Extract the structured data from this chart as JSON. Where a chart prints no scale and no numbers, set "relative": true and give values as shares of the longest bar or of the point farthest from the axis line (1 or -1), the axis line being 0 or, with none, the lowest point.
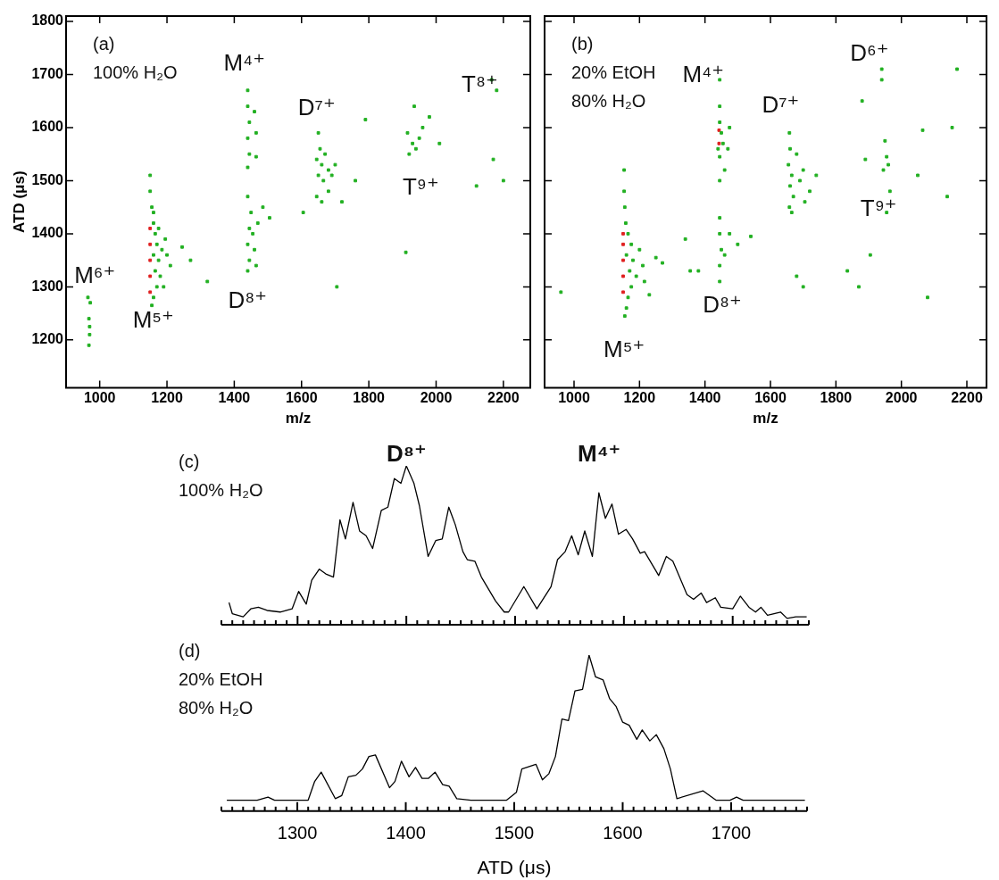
{
  "chart_data": [
    {
      "type": "scatter",
      "xlabel": "m/z",
      "ylabel": "ATD (μs)",
      "xlim": [
        900,
        2280
      ],
      "xticks": [
        1000,
        1200,
        1400,
        1600,
        1800,
        2000,
        2200
      ],
      "ylim": [
        1110,
        1810
      ],
      "yticks": [
        1200,
        1300,
        1400,
        1500,
        1600,
        1700,
        1800
      ],
      "marker": "square",
      "annotations": [
        "(a)",
        "100% H₂O",
        "M⁶⁺",
        "M⁵⁺",
        "M⁴⁺",
        "D⁸⁺",
        "D⁷⁺",
        "T⁹⁺",
        "T⁸⁺"
      ],
      "series": [
        {
          "color": "#22b022",
          "x": [
            968,
            970,
            968,
            972,
            965,
            970,
            1150,
            1150,
            1155,
            1160,
            1165,
            1170,
            1160,
            1175,
            1165,
            1180,
            1170,
            1160,
            1155,
            1185,
            1195,
            1200,
            1210,
            1190,
            1245,
            1270,
            1320,
            1175,
            1160,
            1440,
            1440,
            1445,
            1440,
            1445,
            1440,
            1460,
            1465,
            1465,
            1440,
            1450,
            1445,
            1455,
            1440,
            1460,
            1445,
            1440,
            1470,
            1485,
            1505,
            1465,
            1650,
            1655,
            1645,
            1660,
            1670,
            1680,
            1650,
            1665,
            1690,
            1700,
            1645,
            1660,
            1680,
            1720,
            1760,
            1790,
            1705,
            1605,
            1915,
            1930,
            1940,
            1950,
            1960,
            1980,
            1935,
            1920,
            2010,
            1910,
            2165,
            2180,
            2120,
            2200,
            2170
          ],
          "values": [
            1190,
            1210,
            1240,
            1270,
            1280,
            1225,
            1510,
            1480,
            1450,
            1420,
            1400,
            1380,
            1360,
            1350,
            1330,
            1320,
            1300,
            1280,
            1265,
            1370,
            1390,
            1360,
            1340,
            1300,
            1375,
            1350,
            1310,
            1410,
            1440,
            1670,
            1640,
            1610,
            1580,
            1550,
            1525,
            1630,
            1590,
            1545,
            1470,
            1440,
            1410,
            1400,
            1380,
            1370,
            1350,
            1330,
            1420,
            1450,
            1430,
            1340,
            1590,
            1560,
            1540,
            1530,
            1550,
            1520,
            1510,
            1500,
            1510,
            1530,
            1470,
            1460,
            1480,
            1460,
            1500,
            1615,
            1300,
            1440,
            1590,
            1570,
            1560,
            1580,
            1600,
            1620,
            1640,
            1550,
            1570,
            1365,
            1690,
            1670,
            1490,
            1500,
            1540
          ]
        },
        {
          "color": "#e02020",
          "x": [
            1150,
            1150,
            1150,
            1150,
            1150
          ],
          "values": [
            1290,
            1320,
            1350,
            1380,
            1410
          ]
        }
      ]
    },
    {
      "type": "scatter",
      "xlabel": "m/z",
      "xlim": [
        910,
        2260
      ],
      "xticks": [
        1000,
        1200,
        1400,
        1600,
        1800,
        2000,
        2200
      ],
      "ylim": [
        1110,
        1810
      ],
      "yticks": [
        1200,
        1300,
        1400,
        1500,
        1600,
        1700,
        1800
      ],
      "marker": "square",
      "tick_labels": "x",
      "annotations": [
        "(b)",
        "20% EtOH",
        "80% H₂O",
        "M⁴⁺",
        "M⁵⁺",
        "D⁸⁺",
        "D⁷⁺",
        "D⁶⁺",
        "T⁹⁺"
      ],
      "series": [
        {
          "color": "#22b022",
          "x": [
            1153,
            1153,
            1155,
            1158,
            1165,
            1175,
            1160,
            1180,
            1170,
            1190,
            1175,
            1165,
            1160,
            1155,
            1200,
            1210,
            1215,
            1230,
            1250,
            1270,
            1355,
            1340,
            1445,
            1445,
            1450,
            1455,
            1445,
            1460,
            1445,
            1470,
            1475,
            1440,
            1445,
            1445,
            1445,
            1450,
            1445,
            1445,
            1460,
            1475,
            1500,
            1540,
            1380,
            1658,
            1660,
            1655,
            1665,
            1660,
            1670,
            1658,
            1665,
            1690,
            1700,
            1705,
            1720,
            1740,
            1680,
            1700,
            1680,
            1940,
            1940,
            1950,
            1955,
            1945,
            1960,
            1965,
            1955,
            1890,
            2050,
            2140,
            2170,
            2155,
            2065,
            1880,
            1905,
            1835,
            1870,
            2080,
            960
          ],
          "values": [
            1520,
            1480,
            1450,
            1420,
            1400,
            1380,
            1360,
            1350,
            1330,
            1320,
            1300,
            1280,
            1260,
            1245,
            1370,
            1340,
            1310,
            1285,
            1355,
            1345,
            1330,
            1390,
            1640,
            1610,
            1590,
            1570,
            1545,
            1520,
            1500,
            1560,
            1600,
            1560,
            1690,
            1430,
            1400,
            1370,
            1340,
            1310,
            1360,
            1400,
            1380,
            1395,
            1330,
            1590,
            1560,
            1530,
            1510,
            1490,
            1470,
            1450,
            1440,
            1500,
            1520,
            1460,
            1480,
            1510,
            1550,
            1300,
            1320,
            1710,
            1690,
            1575,
            1545,
            1520,
            1530,
            1480,
            1440,
            1540,
            1510,
            1470,
            1710,
            1600,
            1595,
            1650,
            1360,
            1330,
            1300,
            1280,
            1290
          ]
        },
        {
          "color": "#e02020",
          "x": [
            1150,
            1150,
            1150,
            1150,
            1150,
            1443,
            1443
          ],
          "values": [
            1290,
            1320,
            1350,
            1380,
            1400,
            1570,
            1595
          ]
        }
      ]
    },
    {
      "type": "line",
      "relative": true,
      "tick_labels": false,
      "xlim": [
        1230,
        1770
      ],
      "marker": "none",
      "line_style": "solid",
      "xticks": [
        {
          "value": 1230,
          "label": null
        },
        {
          "value": 1240,
          "label": null
        },
        {
          "value": 1250,
          "label": null
        },
        {
          "value": 1260,
          "label": null
        },
        {
          "value": 1270,
          "label": null
        },
        {
          "value": 1280,
          "label": null
        },
        {
          "value": 1290,
          "label": null
        },
        1300,
        {
          "value": 1310,
          "label": null
        },
        {
          "value": 1320,
          "label": null
        },
        {
          "value": 1330,
          "label": null
        },
        {
          "value": 1340,
          "label": null
        },
        {
          "value": 1350,
          "label": null
        },
        {
          "value": 1360,
          "label": null
        },
        {
          "value": 1370,
          "label": null
        },
        {
          "value": 1380,
          "label": null
        },
        {
          "value": 1390,
          "label": null
        },
        1400,
        {
          "value": 1410,
          "label": null
        },
        {
          "value": 1420,
          "label": null
        },
        {
          "value": 1430,
          "label": null
        },
        {
          "value": 1440,
          "label": null
        },
        {
          "value": 1450,
          "label": null
        },
        {
          "value": 1460,
          "label": null
        },
        {
          "value": 1470,
          "label": null
        },
        {
          "value": 1480,
          "label": null
        },
        {
          "value": 1490,
          "label": null
        },
        1500,
        {
          "value": 1510,
          "label": null
        },
        {
          "value": 1520,
          "label": null
        },
        {
          "value": 1530,
          "label": null
        },
        {
          "value": 1540,
          "label": null
        },
        {
          "value": 1550,
          "label": null
        },
        {
          "value": 1560,
          "label": null
        },
        {
          "value": 1570,
          "label": null
        },
        {
          "value": 1580,
          "label": null
        },
        {
          "value": 1590,
          "label": null
        },
        1600,
        {
          "value": 1610,
          "label": null
        },
        {
          "value": 1620,
          "label": null
        },
        {
          "value": 1630,
          "label": null
        },
        {
          "value": 1640,
          "label": null
        },
        {
          "value": 1650,
          "label": null
        },
        {
          "value": 1660,
          "label": null
        },
        {
          "value": 1670,
          "label": null
        },
        {
          "value": 1680,
          "label": null
        },
        {
          "value": 1690,
          "label": null
        },
        1700,
        {
          "value": 1710,
          "label": null
        },
        {
          "value": 1720,
          "label": null
        },
        {
          "value": 1730,
          "label": null
        },
        {
          "value": 1740,
          "label": null
        },
        {
          "value": 1750,
          "label": null
        },
        {
          "value": 1760,
          "label": null
        },
        {
          "value": 1770,
          "label": null
        }
      ],
      "annotations": [
        "(c)",
        "100% H₂O",
        "D⁸⁺",
        "M⁴⁺"
      ],
      "series": [
        {
          "color": "#000000",
          "x": [
            1237,
            1240,
            1250,
            1257,
            1264,
            1272,
            1284,
            1295,
            1301,
            1308,
            1313,
            1320,
            1326,
            1333,
            1339,
            1344,
            1351,
            1357,
            1363,
            1369,
            1377,
            1383,
            1389,
            1395,
            1400,
            1407,
            1412,
            1420,
            1427,
            1433,
            1439,
            1445,
            1452,
            1456,
            1463,
            1469,
            1482,
            1490,
            1494,
            1508,
            1520,
            1533,
            1539,
            1546,
            1552,
            1558,
            1564,
            1571,
            1577,
            1583,
            1589,
            1595,
            1602,
            1608,
            1615,
            1619,
            1632,
            1639,
            1645,
            1658,
            1664,
            1671,
            1676,
            1684,
            1689,
            1700,
            1707,
            1715,
            1721,
            1726,
            1732,
            1744,
            1750,
            1758,
            1768
          ],
          "values": [
            0.14,
            0.07,
            0.05,
            0.1,
            0.11,
            0.09,
            0.08,
            0.1,
            0.21,
            0.13,
            0.28,
            0.35,
            0.32,
            0.3,
            0.66,
            0.54,
            0.77,
            0.59,
            0.56,
            0.48,
            0.72,
            0.74,
            0.92,
            0.89,
            1,
            0.89,
            0.75,
            0.43,
            0.53,
            0.54,
            0.74,
            0.63,
            0.46,
            0.41,
            0.4,
            0.3,
            0.15,
            0.08,
            0.08,
            0.24,
            0.1,
            0.24,
            0.41,
            0.46,
            0.56,
            0.44,
            0.59,
            0.43,
            0.83,
            0.67,
            0.76,
            0.57,
            0.6,
            0.54,
            0.45,
            0.46,
            0.31,
            0.43,
            0.4,
            0.19,
            0.16,
            0.2,
            0.14,
            0.17,
            0.11,
            0.1,
            0.18,
            0.11,
            0.08,
            0.11,
            0.06,
            0.08,
            0.04,
            0.05,
            0.05
          ]
        }
      ]
    },
    {
      "type": "line",
      "relative": true,
      "tick_labels": "x",
      "xlabel": "ATD (μs)",
      "xlim": [
        1230,
        1770
      ],
      "marker": "none",
      "line_style": "solid",
      "xticks": [
        {
          "value": 1230,
          "label": null
        },
        {
          "value": 1240,
          "label": null
        },
        {
          "value": 1250,
          "label": null
        },
        {
          "value": 1260,
          "label": null
        },
        {
          "value": 1270,
          "label": null
        },
        {
          "value": 1280,
          "label": null
        },
        {
          "value": 1290,
          "label": null
        },
        1300,
        {
          "value": 1310,
          "label": null
        },
        {
          "value": 1320,
          "label": null
        },
        {
          "value": 1330,
          "label": null
        },
        {
          "value": 1340,
          "label": null
        },
        {
          "value": 1350,
          "label": null
        },
        {
          "value": 1360,
          "label": null
        },
        {
          "value": 1370,
          "label": null
        },
        {
          "value": 1380,
          "label": null
        },
        {
          "value": 1390,
          "label": null
        },
        1400,
        {
          "value": 1410,
          "label": null
        },
        {
          "value": 1420,
          "label": null
        },
        {
          "value": 1430,
          "label": null
        },
        {
          "value": 1440,
          "label": null
        },
        {
          "value": 1450,
          "label": null
        },
        {
          "value": 1460,
          "label": null
        },
        {
          "value": 1470,
          "label": null
        },
        {
          "value": 1480,
          "label": null
        },
        {
          "value": 1490,
          "label": null
        },
        1500,
        {
          "value": 1510,
          "label": null
        },
        {
          "value": 1520,
          "label": null
        },
        {
          "value": 1530,
          "label": null
        },
        {
          "value": 1540,
          "label": null
        },
        {
          "value": 1550,
          "label": null
        },
        {
          "value": 1560,
          "label": null
        },
        {
          "value": 1570,
          "label": null
        },
        {
          "value": 1580,
          "label": null
        },
        {
          "value": 1590,
          "label": null
        },
        1600,
        {
          "value": 1610,
          "label": null
        },
        {
          "value": 1620,
          "label": null
        },
        {
          "value": 1630,
          "label": null
        },
        {
          "value": 1640,
          "label": null
        },
        {
          "value": 1650,
          "label": null
        },
        {
          "value": 1660,
          "label": null
        },
        {
          "value": 1670,
          "label": null
        },
        {
          "value": 1680,
          "label": null
        },
        {
          "value": 1690,
          "label": null
        },
        1700,
        {
          "value": 1710,
          "label": null
        },
        {
          "value": 1720,
          "label": null
        },
        {
          "value": 1730,
          "label": null
        },
        {
          "value": 1740,
          "label": null
        },
        {
          "value": 1750,
          "label": null
        },
        {
          "value": 1760,
          "label": null
        },
        {
          "value": 1770,
          "label": null
        }
      ],
      "annotations": [
        "(d)",
        "20% EtOH",
        "80% H₂O"
      ],
      "series": [
        {
          "color": "#000000",
          "x": [
            1235,
            1263,
            1273,
            1279,
            1286,
            1310,
            1316,
            1322,
            1335,
            1341,
            1347,
            1354,
            1360,
            1366,
            1372,
            1385,
            1390,
            1396,
            1403,
            1409,
            1415,
            1421,
            1427,
            1434,
            1440,
            1447,
            1460,
            1493,
            1502,
            1507,
            1520,
            1526,
            1532,
            1538,
            1544,
            1550,
            1556,
            1563,
            1569,
            1575,
            1582,
            1588,
            1594,
            1600,
            1606,
            1613,
            1618,
            1625,
            1631,
            1638,
            1644,
            1650,
            1674,
            1686,
            1699,
            1705,
            1711,
            1733,
            1768
          ],
          "values": [
            0.07,
            0.07,
            0.09,
            0.07,
            0.07,
            0.07,
            0.19,
            0.25,
            0.08,
            0.1,
            0.22,
            0.23,
            0.27,
            0.35,
            0.36,
            0.15,
            0.19,
            0.32,
            0.22,
            0.28,
            0.21,
            0.21,
            0.25,
            0.17,
            0.16,
            0.08,
            0.07,
            0.07,
            0.12,
            0.27,
            0.3,
            0.2,
            0.24,
            0.35,
            0.59,
            0.58,
            0.77,
            0.78,
            1,
            0.86,
            0.84,
            0.72,
            0.67,
            0.57,
            0.55,
            0.46,
            0.52,
            0.45,
            0.49,
            0.4,
            0.27,
            0.08,
            0.13,
            0.07,
            0.07,
            0.09,
            0.07,
            0.07,
            0.07
          ]
        }
      ]
    }
  ]
}
